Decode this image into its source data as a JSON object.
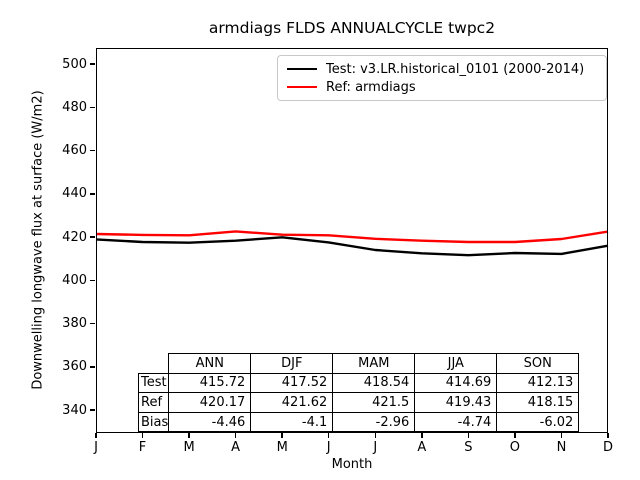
{
  "title": "armdiags FLDS ANNUALCYCLE twpc2",
  "chart_data": {
    "type": "line",
    "x": [
      "J",
      "F",
      "M",
      "A",
      "M",
      "J",
      "J",
      "A",
      "S",
      "O",
      "N",
      "D"
    ],
    "xlabel": "Month",
    "ylabel": "Downwelling longwave flux at surface (W/m2)",
    "ylim": [
      329.4,
      507.4
    ],
    "yticks": [
      340,
      360,
      380,
      400,
      420,
      440,
      460,
      480,
      500
    ],
    "grid": false,
    "legend_position": "upper right",
    "series": [
      {
        "name": "Test: v3.LR.historical_0101 (2000-2014)",
        "color": "#000000",
        "values": [
          418.9,
          417.7,
          417.4,
          418.3,
          419.9,
          417.5,
          414.0,
          412.5,
          411.6,
          412.6,
          412.2,
          416.0
        ]
      },
      {
        "name": "Ref: armdiags",
        "color": "#ff0000",
        "values": [
          421.4,
          421.0,
          420.8,
          422.6,
          421.1,
          420.8,
          419.2,
          418.3,
          417.7,
          417.7,
          419.1,
          422.5
        ]
      }
    ]
  },
  "table": {
    "columns": [
      "ANN",
      "DJF",
      "MAM",
      "JJA",
      "SON"
    ],
    "rows": [
      {
        "label": "Test",
        "values": [
          "415.72",
          "417.52",
          "418.54",
          "414.69",
          "412.13"
        ]
      },
      {
        "label": "Ref",
        "values": [
          "420.17",
          "421.62",
          "421.5",
          "419.43",
          "418.15"
        ]
      },
      {
        "label": "Bias",
        "values": [
          "-4.46",
          "-4.1",
          "-2.96",
          "-4.74",
          "-6.02"
        ]
      }
    ]
  }
}
